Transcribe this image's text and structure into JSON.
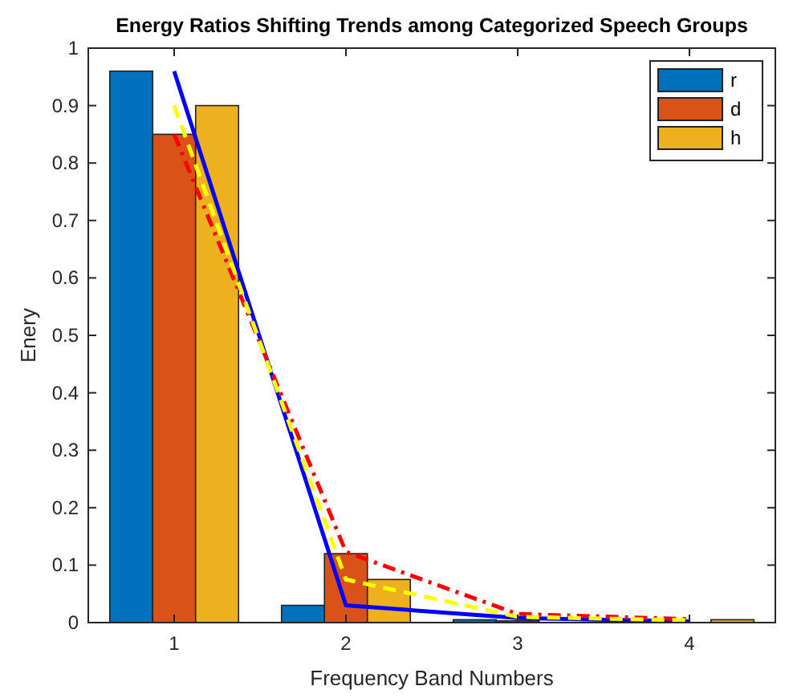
{
  "chart_data": {
    "type": "bar",
    "title": "Energy Ratios Shifting Trends among Categorized Speech Groups",
    "xlabel": "Frequency Band Numbers",
    "ylabel": "Enery",
    "x": [
      1,
      2,
      3,
      4
    ],
    "xlim": [
      0.5,
      4.5
    ],
    "xticks": [
      1,
      2,
      3,
      4
    ],
    "ylim": [
      0,
      1
    ],
    "yticks": [
      0,
      0.1,
      0.2,
      0.3,
      0.4,
      0.5,
      0.6,
      0.7,
      0.8,
      0.9,
      1
    ],
    "legend": "top right",
    "grid": false,
    "series": [
      {
        "name": "r",
        "color": "#0072bd",
        "values": [
          0.96,
          0.03,
          0.005,
          0.002
        ]
      },
      {
        "name": "d",
        "color": "#d95319",
        "values": [
          0.85,
          0.12,
          0.003,
          null
        ]
      },
      {
        "name": "h",
        "color": "#edb120",
        "values": [
          0.9,
          0.075,
          null,
          0.005
        ]
      },
      {
        "type": "line",
        "color": "#0000ff",
        "line_style": "solid",
        "values": [
          0.96,
          0.03,
          0.008,
          0.002
        ]
      },
      {
        "type": "line",
        "color": "#ff0000",
        "line_style": "dashdot",
        "values": [
          0.85,
          0.123,
          0.015,
          0.006
        ]
      },
      {
        "type": "line",
        "color": "#ffff00",
        "line_style": "dashed",
        "values": [
          0.9,
          0.075,
          0.01,
          0.004
        ]
      }
    ]
  }
}
